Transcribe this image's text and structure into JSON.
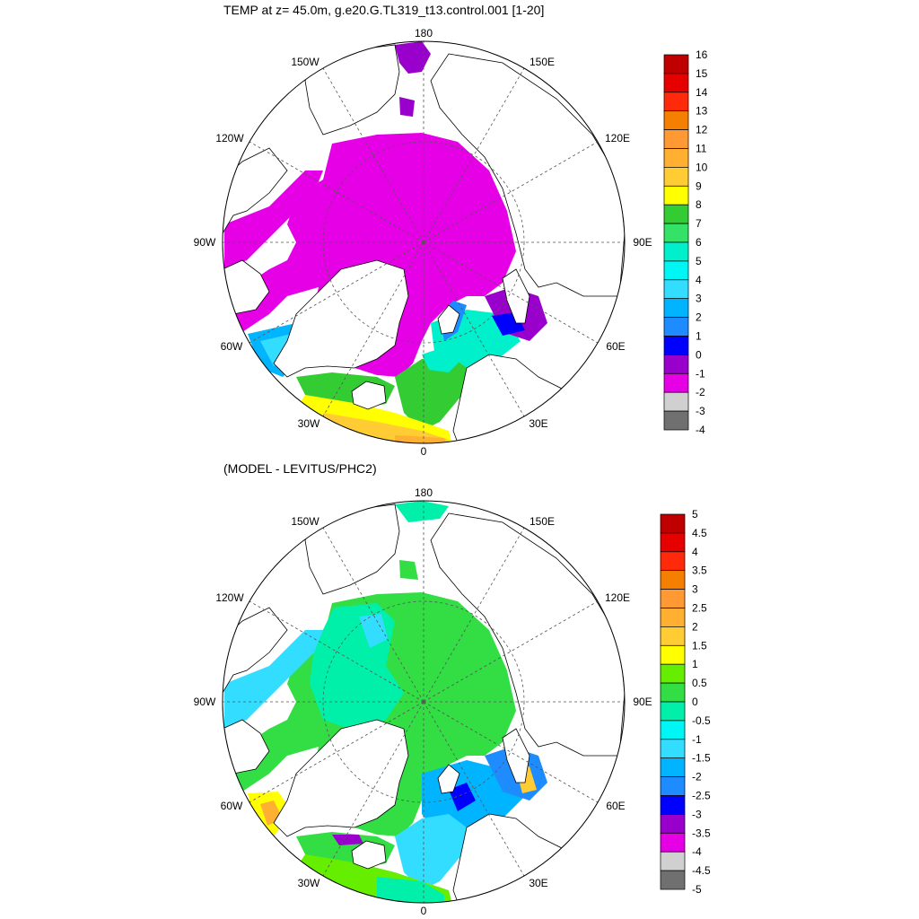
{
  "top_panel": {
    "title": "TEMP at z=  45.0m, g.e20.G.TL319_t13.control.001 [1-20]",
    "colorbar": {
      "labels": [
        "16",
        "15",
        "14",
        "13",
        "12",
        "11",
        "10",
        "9",
        "8",
        "7",
        "6",
        "5",
        "4",
        "3",
        "2",
        "1",
        "0",
        "-1",
        "-2",
        "-3",
        "-4"
      ],
      "colors": [
        "#c00000",
        "#e60000",
        "#ff2a0a",
        "#f57f00",
        "#ff9933",
        "#ffb030",
        "#ffcc33",
        "#ffff00",
        "#33cc33",
        "#33e266",
        "#00f0cc",
        "#00f5f5",
        "#33ddff",
        "#00b4ff",
        "#1e8cff",
        "#0000ff",
        "#9900cc",
        "#e600e6",
        "#d0d0d0",
        "#707070"
      ]
    },
    "labels": {
      "lat180": "180",
      "lon150w": "150W",
      "lon150e": "150E",
      "lon120w": "120W",
      "lon120e": "120E",
      "lon90w": "90W",
      "lon90e": "90E",
      "lon60w": "60W",
      "lon60e": "60E",
      "lon30w": "30W",
      "lon30e": "30E",
      "lon0": "0"
    }
  },
  "bottom_panel": {
    "title": "(MODEL - LEVITUS/PHC2)",
    "colorbar": {
      "labels": [
        "5",
        "4.5",
        "4",
        "3.5",
        "3",
        "2.5",
        "2",
        "1.5",
        "1",
        "0.5",
        "0",
        "-0.5",
        "-1",
        "-1.5",
        "-2",
        "-2.5",
        "-3",
        "-3.5",
        "-4",
        "-4.5",
        "-5"
      ],
      "colors": [
        "#c00000",
        "#e60000",
        "#ff2a0a",
        "#f57f00",
        "#ff9933",
        "#ffb030",
        "#ffcc33",
        "#ffff00",
        "#66ee00",
        "#33dd44",
        "#00f0aa",
        "#00f5f5",
        "#33ddff",
        "#00b4ff",
        "#1e8cff",
        "#0000ff",
        "#9900cc",
        "#e600e6",
        "#d0d0d0",
        "#707070"
      ]
    },
    "labels": {
      "lat180": "180",
      "lon150w": "150W",
      "lon150e": "150E",
      "lon120w": "120W",
      "lon120e": "120E",
      "lon90w": "90W",
      "lon90e": "90E",
      "lon60w": "60W",
      "lon60e": "60E",
      "lon30w": "30W",
      "lon30e": "30E",
      "lon0": "0"
    }
  }
}
